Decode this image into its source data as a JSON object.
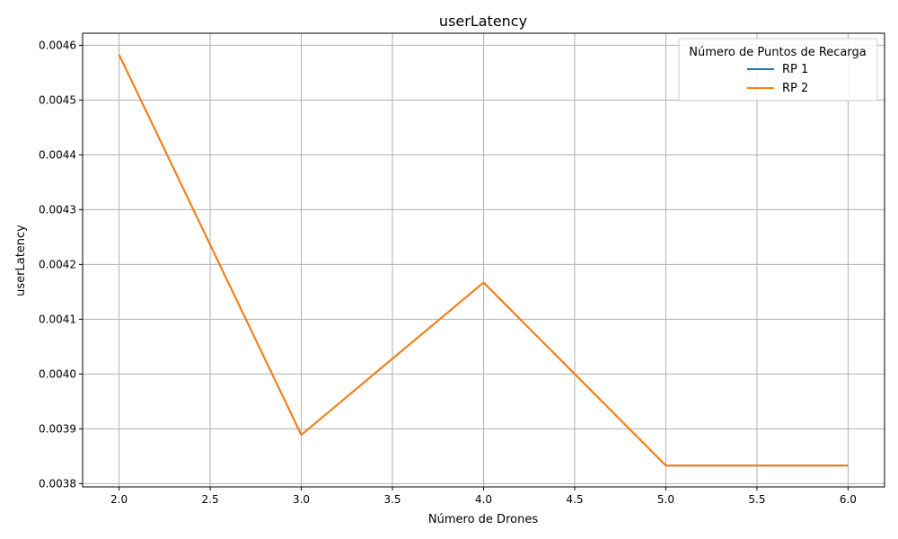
{
  "chart_data": {
    "type": "line",
    "title": "userLatency",
    "xlabel": "Número de Drones",
    "ylabel": "userLatency",
    "xlim": [
      1.8,
      6.2
    ],
    "ylim": [
      0.003794,
      0.004622
    ],
    "xticks": [
      2.0,
      2.5,
      3.0,
      3.5,
      4.0,
      4.5,
      5.0,
      5.5,
      6.0
    ],
    "xtick_labels": [
      "2.0",
      "2.5",
      "3.0",
      "3.5",
      "4.0",
      "4.5",
      "5.0",
      "5.5",
      "6.0"
    ],
    "yticks": [
      0.0038,
      0.0039,
      0.004,
      0.0041,
      0.0042,
      0.0043,
      0.0044,
      0.0045,
      0.0046
    ],
    "ytick_labels": [
      "0.0038",
      "0.0039",
      "0.0040",
      "0.0041",
      "0.0042",
      "0.0043",
      "0.0044",
      "0.0045",
      "0.0046"
    ],
    "grid": true,
    "legend": {
      "title": "Número de Puntos de Recarga",
      "placement": "upper right"
    },
    "series": [
      {
        "name": "RP 1",
        "color": "#1f77b4",
        "x": [
          2,
          3,
          4,
          5,
          6
        ],
        "y": [
          0.004583,
          0.003889,
          0.004167,
          0.003833,
          0.003833
        ]
      },
      {
        "name": "RP 2",
        "color": "#ff7f0e",
        "x": [
          2,
          3,
          4,
          5,
          6
        ],
        "y": [
          0.004583,
          0.003889,
          0.004167,
          0.003833,
          0.003833
        ]
      }
    ]
  }
}
